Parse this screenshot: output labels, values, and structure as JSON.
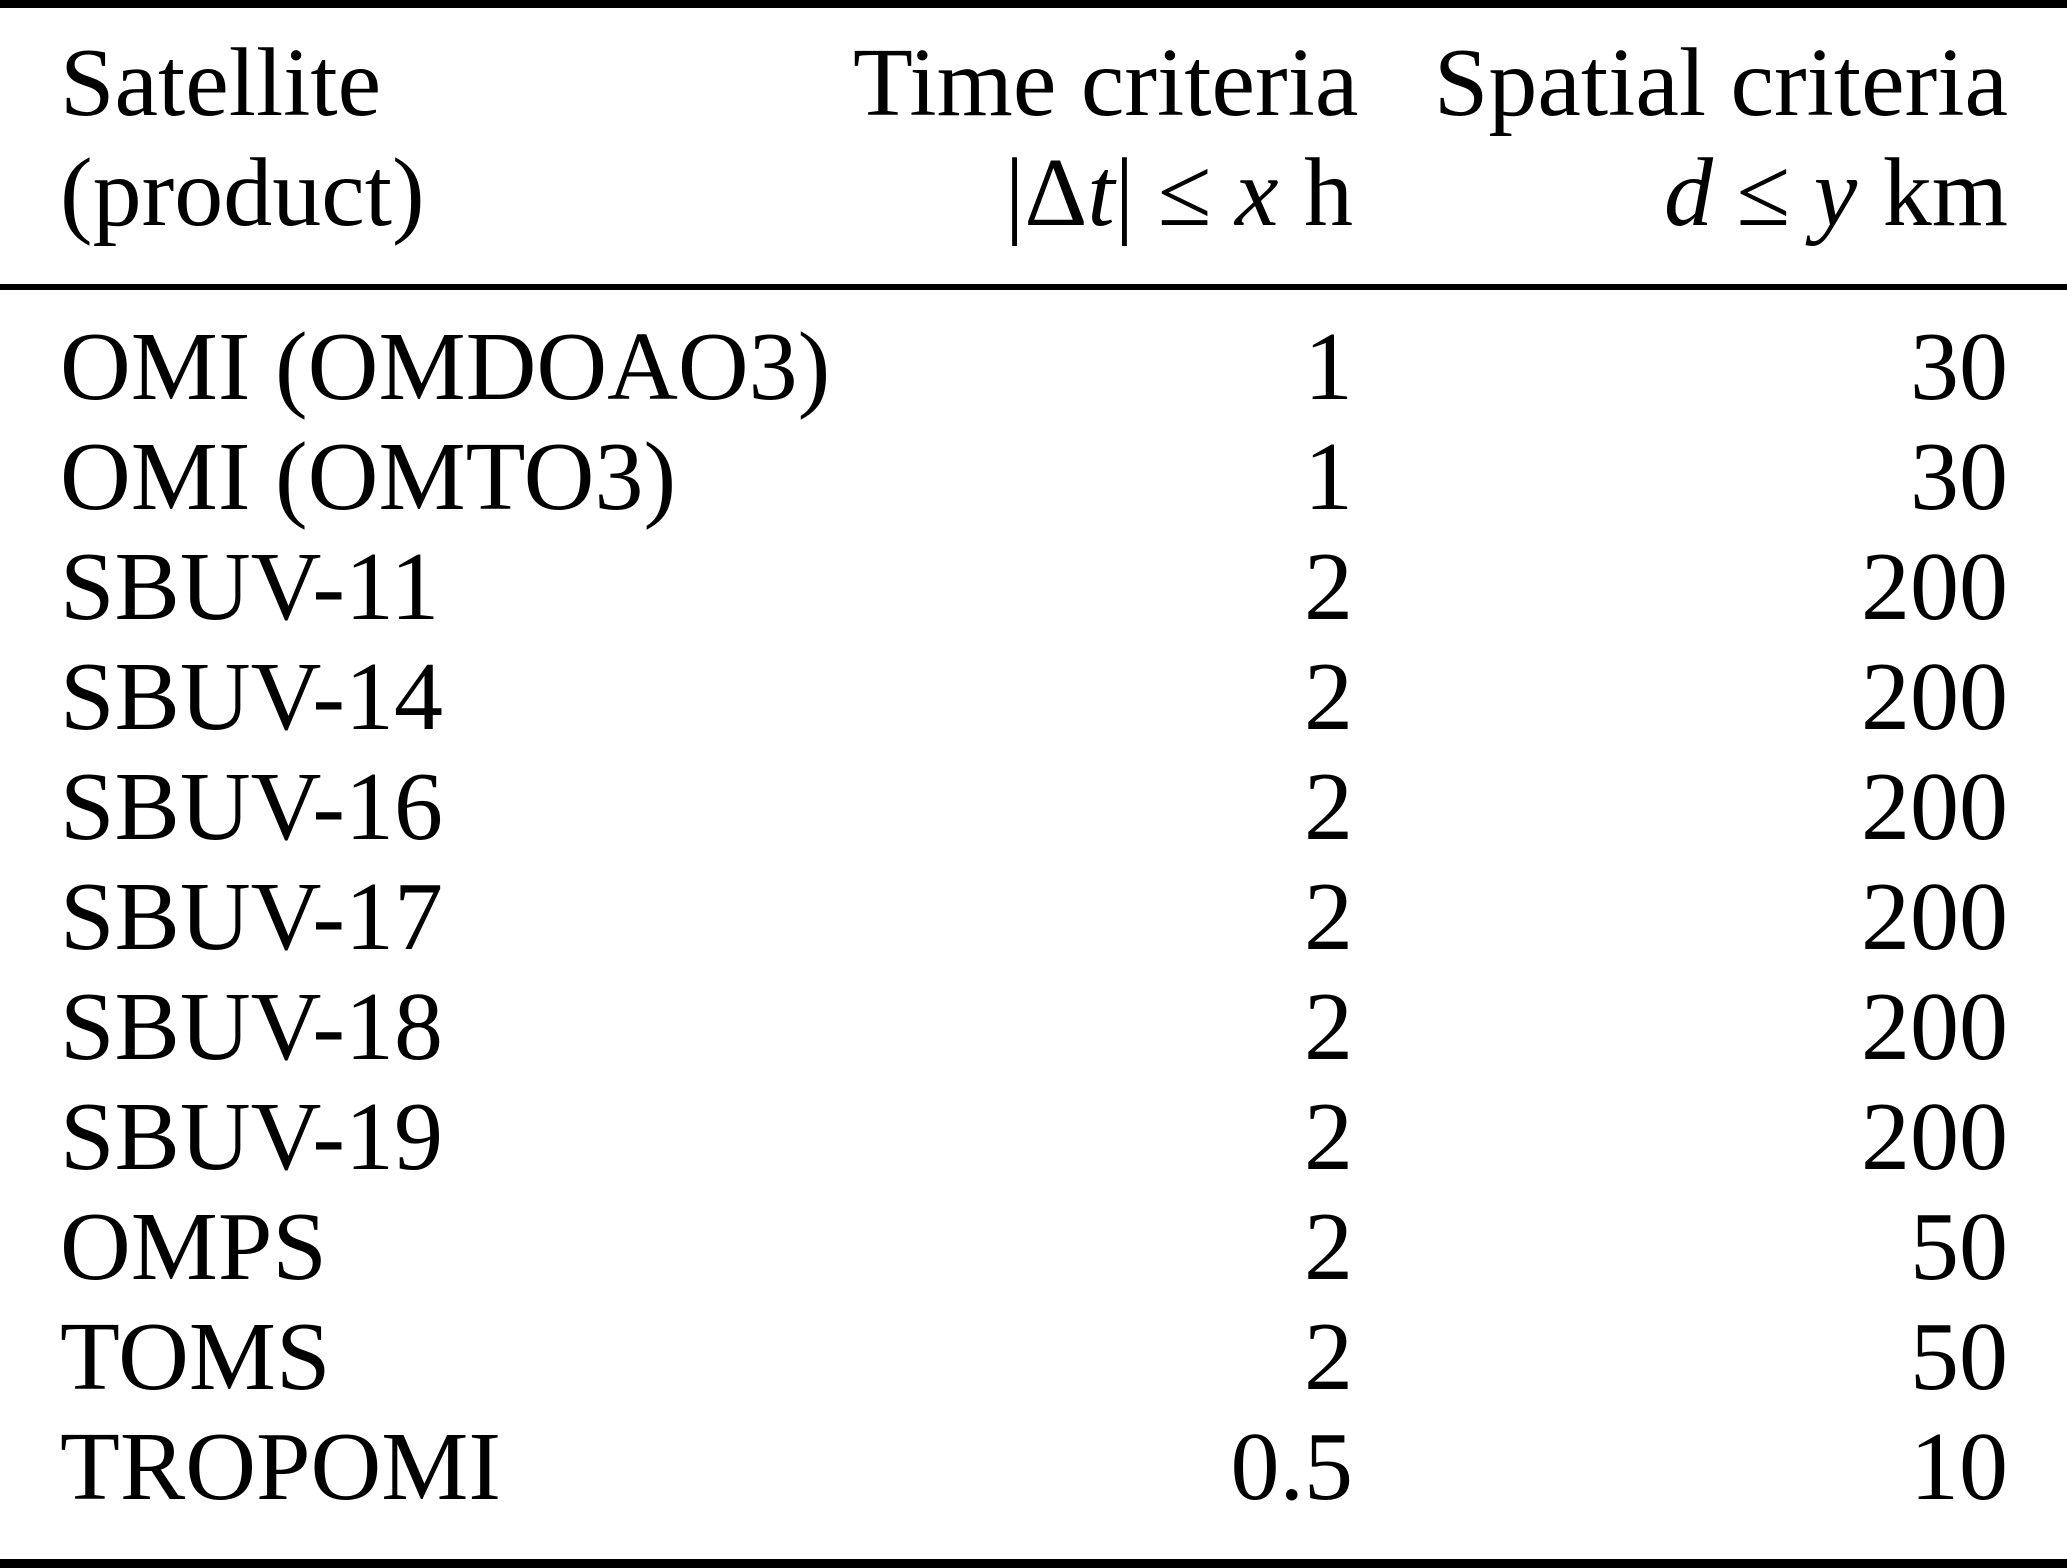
{
  "table": {
    "header": {
      "satellite_line1": "Satellite",
      "satellite_line2": "(product)",
      "time_line1": "Time criteria",
      "time_formula": {
        "abs_open_delta": "|Δ",
        "var_t": "t",
        "abs_close": "|",
        "leq": "≤",
        "var_x": "x",
        "unit": "h"
      },
      "spatial_line1": "Spatial criteria",
      "spatial_formula": {
        "var_d": "d",
        "leq": "≤",
        "var_y": "y",
        "unit": "km"
      }
    },
    "rows": [
      {
        "product": "OMI (OMDOAO3)",
        "time_h": "1",
        "spatial_km": "30"
      },
      {
        "product": "OMI (OMTO3)",
        "time_h": "1",
        "spatial_km": "30"
      },
      {
        "product": "SBUV-11",
        "time_h": "2",
        "spatial_km": "200"
      },
      {
        "product": "SBUV-14",
        "time_h": "2",
        "spatial_km": "200"
      },
      {
        "product": "SBUV-16",
        "time_h": "2",
        "spatial_km": "200"
      },
      {
        "product": "SBUV-17",
        "time_h": "2",
        "spatial_km": "200"
      },
      {
        "product": "SBUV-18",
        "time_h": "2",
        "spatial_km": "200"
      },
      {
        "product": "SBUV-19",
        "time_h": "2",
        "spatial_km": "200"
      },
      {
        "product": "OMPS",
        "time_h": "2",
        "spatial_km": "50"
      },
      {
        "product": "TOMS",
        "time_h": "2",
        "spatial_km": "50"
      },
      {
        "product": "TROPOMI",
        "time_h": "0.5",
        "spatial_km": "10"
      }
    ]
  },
  "colors": {
    "text": "#000000",
    "rule": "#000000",
    "background": "#ffffff"
  }
}
